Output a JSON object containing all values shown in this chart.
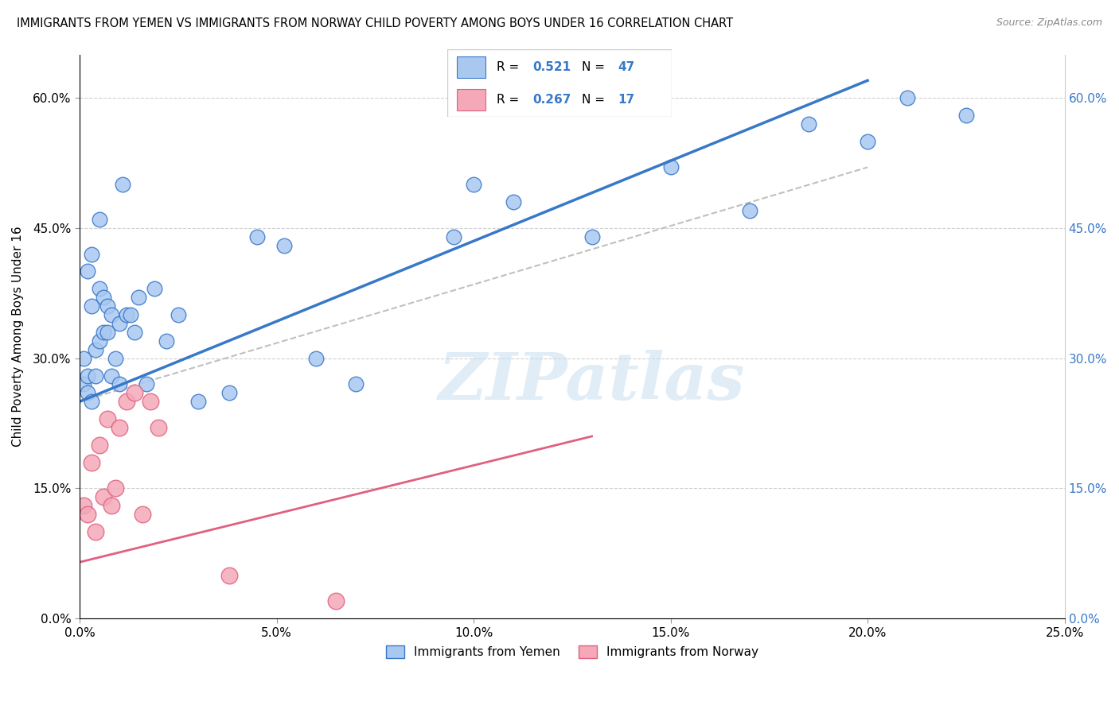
{
  "title": "IMMIGRANTS FROM YEMEN VS IMMIGRANTS FROM NORWAY CHILD POVERTY AMONG BOYS UNDER 16 CORRELATION CHART",
  "source": "Source: ZipAtlas.com",
  "ylabel": "Child Poverty Among Boys Under 16",
  "legend_label1": "Immigrants from Yemen",
  "legend_label2": "Immigrants from Norway",
  "R1": "0.521",
  "N1": "47",
  "R2": "0.267",
  "N2": "17",
  "color_yemen": "#a8c8f0",
  "color_norway": "#f4a8b8",
  "color_line_yemen": "#3878c8",
  "color_line_norway": "#e06080",
  "color_line_dashed": "#c0c0c0",
  "xlim": [
    0.0,
    0.25
  ],
  "ylim": [
    0.0,
    0.65
  ],
  "xticks": [
    0.0,
    0.05,
    0.1,
    0.15,
    0.2,
    0.25
  ],
  "yticks": [
    0.0,
    0.15,
    0.3,
    0.45,
    0.6
  ],
  "watermark": "ZIPatlas",
  "yemen_x": [
    0.001,
    0.001,
    0.002,
    0.002,
    0.002,
    0.003,
    0.003,
    0.003,
    0.004,
    0.004,
    0.005,
    0.005,
    0.005,
    0.006,
    0.006,
    0.007,
    0.007,
    0.008,
    0.008,
    0.009,
    0.01,
    0.01,
    0.011,
    0.012,
    0.013,
    0.014,
    0.015,
    0.017,
    0.019,
    0.022,
    0.025,
    0.03,
    0.038,
    0.045,
    0.052,
    0.06,
    0.07,
    0.095,
    0.1,
    0.11,
    0.13,
    0.15,
    0.17,
    0.185,
    0.2,
    0.21,
    0.225
  ],
  "yemen_y": [
    0.27,
    0.3,
    0.26,
    0.28,
    0.4,
    0.25,
    0.36,
    0.42,
    0.31,
    0.28,
    0.38,
    0.32,
    0.46,
    0.33,
    0.37,
    0.33,
    0.36,
    0.35,
    0.28,
    0.3,
    0.27,
    0.34,
    0.5,
    0.35,
    0.35,
    0.33,
    0.37,
    0.27,
    0.38,
    0.32,
    0.35,
    0.25,
    0.26,
    0.44,
    0.43,
    0.3,
    0.27,
    0.44,
    0.5,
    0.48,
    0.44,
    0.52,
    0.47,
    0.57,
    0.55,
    0.6,
    0.58
  ],
  "norway_x": [
    0.001,
    0.002,
    0.003,
    0.004,
    0.005,
    0.006,
    0.007,
    0.008,
    0.009,
    0.01,
    0.012,
    0.014,
    0.016,
    0.018,
    0.02,
    0.038,
    0.065
  ],
  "norway_y": [
    0.13,
    0.12,
    0.18,
    0.1,
    0.2,
    0.14,
    0.23,
    0.13,
    0.15,
    0.22,
    0.25,
    0.26,
    0.12,
    0.25,
    0.22,
    0.05,
    0.02
  ],
  "yemen_dot_size": 180,
  "norway_dot_size": 220,
  "trend_line_yemen": [
    0.0,
    0.25,
    0.2,
    0.62
  ],
  "trend_line_norway": [
    0.0,
    0.065,
    0.13,
    0.21
  ],
  "dashed_line": [
    0.0,
    0.25,
    0.2,
    0.52
  ]
}
